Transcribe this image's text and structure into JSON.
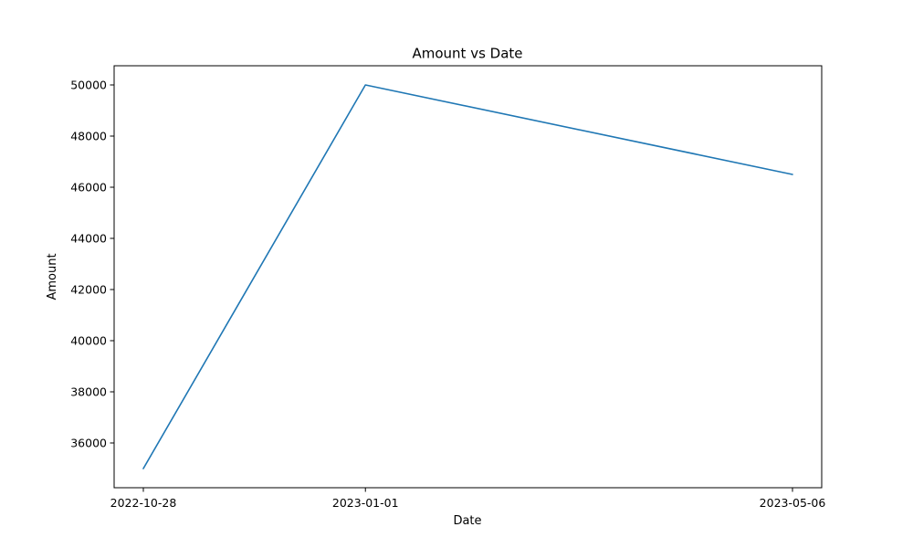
{
  "chart_data": {
    "type": "line",
    "title": "Amount vs Date",
    "xlabel": "Date",
    "ylabel": "Amount",
    "x": [
      "2022-10-28",
      "2023-01-01",
      "2023-05-06"
    ],
    "series": [
      {
        "values": [
          35000,
          50000,
          46500
        ],
        "color": "#1f77b4"
      }
    ],
    "xticks": [
      "2022-10-28",
      "2023-01-01",
      "2023-05-06"
    ],
    "yticks": [
      36000,
      38000,
      40000,
      42000,
      44000,
      46000,
      48000,
      50000
    ],
    "ylim": [
      34250,
      50750
    ],
    "grid": false,
    "legend": "none"
  }
}
